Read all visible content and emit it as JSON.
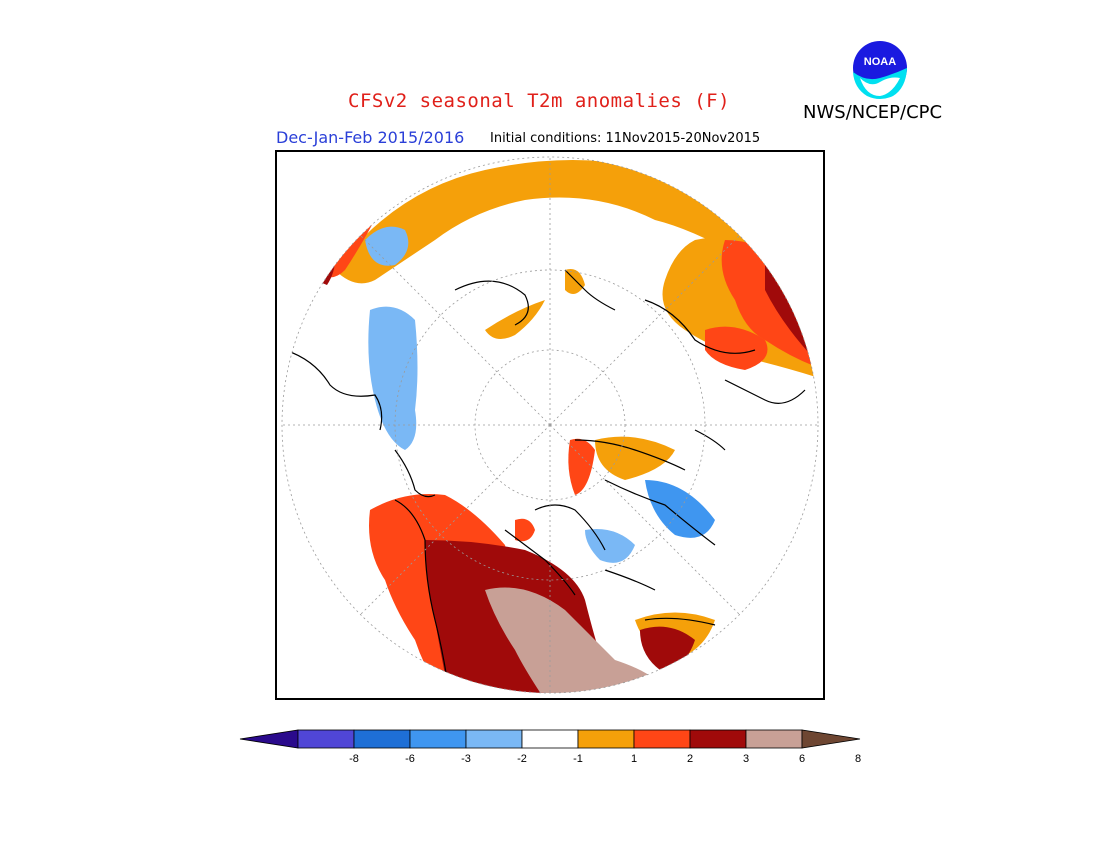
{
  "header": {
    "title": "CFSv2 seasonal T2m anomalies (F)",
    "agency": "NWS/NCEP/CPC",
    "season": "Dec-Jan-Feb 2015/2016",
    "initial_conditions": "Initial conditions: 11Nov2015-20Nov2015",
    "logo_text": "NOAA"
  },
  "map": {
    "projection": "north polar stereographic",
    "variable": "2 m temperature anomaly",
    "units": "F"
  },
  "legend": {
    "ticks": [
      "-8",
      "-6",
      "-3",
      "-2",
      "-1",
      "1",
      "2",
      "3",
      "6",
      "8"
    ],
    "colors": [
      "#2a0a8c",
      "#5046d6",
      "#1e6fd6",
      "#3f96f0",
      "#7ab8f5",
      "#ffffff",
      "#f5a00a",
      "#ff4616",
      "#a00a0a",
      "#c8a096",
      "#6e4632"
    ]
  }
}
